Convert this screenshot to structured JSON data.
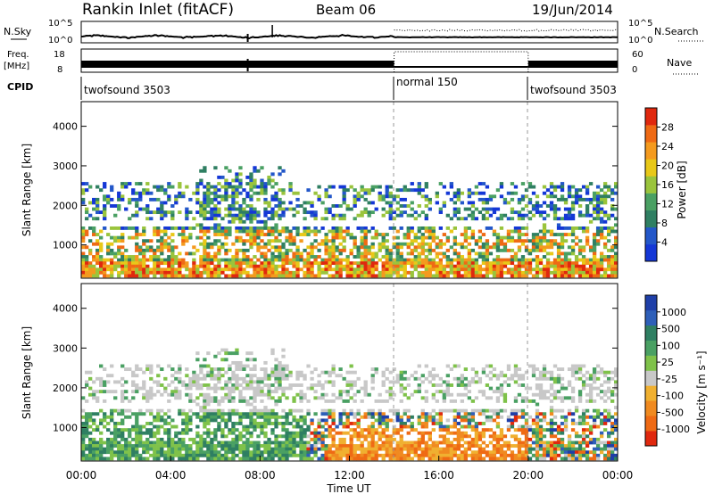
{
  "header": {
    "title": "Rankin Inlet (fitACF)",
    "beam": "Beam 06",
    "date": "19/Jun/2014"
  },
  "chart_data": [
    {
      "type": "line",
      "name": "noise",
      "left_label": "N.Sky",
      "right_label": "N.Search",
      "left_ticks": [
        "10^5",
        "10^0"
      ],
      "right_ticks": [
        "10^5",
        "10^0"
      ]
    },
    {
      "type": "line",
      "name": "frequency-nave",
      "left_label": "Freq.",
      "left_unit": "[MHz]",
      "right_label": "Nave",
      "left_ticks": [
        "18",
        "8"
      ],
      "right_ticks": [
        "60",
        "0"
      ]
    },
    {
      "type": "table",
      "name": "cpid",
      "label": "CPID",
      "segments": [
        {
          "start_hour": 0,
          "end_hour": 14,
          "label": "twofsound 3503"
        },
        {
          "start_hour": 14,
          "end_hour": 20,
          "label": "normal 150"
        },
        {
          "start_hour": 20,
          "end_hour": 24,
          "label": "twofsound 3503"
        }
      ]
    },
    {
      "type": "heatmap",
      "name": "power",
      "ylabel": "Slant Range [km]",
      "y_ticks": [
        1000,
        2000,
        3000,
        4000
      ],
      "ylim": [
        180,
        4600
      ],
      "colorbar_label": "Power [dB]",
      "colorbar_ticks": [
        "4",
        "8",
        "12",
        "16",
        "20",
        "24",
        "28"
      ],
      "colorbar_colors": [
        "#1437d6",
        "#2357c9",
        "#2f7f62",
        "#4aa063",
        "#9ac43c",
        "#e8c818",
        "#f49a1e",
        "#ef6a14",
        "#e0280e"
      ]
    },
    {
      "type": "heatmap",
      "name": "velocity",
      "ylabel": "Slant Range [km]",
      "y_ticks": [
        1000,
        2000,
        3000,
        4000
      ],
      "ylim": [
        180,
        4600
      ],
      "colorbar_label": "Velocity [m s⁻¹]",
      "colorbar_ticks": [
        "1000",
        "500",
        "100",
        "25",
        "-25",
        "-100",
        "-500",
        "-1000"
      ],
      "colorbar_colors": [
        "#1f3fa8",
        "#2e5fb8",
        "#2f7f62",
        "#4aa063",
        "#7fc24a",
        "#c8c8c8",
        "#f0b030",
        "#f08a20",
        "#ef6a14",
        "#e0280e"
      ]
    }
  ],
  "time_axis": {
    "label": "Time UT",
    "ticks": [
      "00:00",
      "04:00",
      "08:00",
      "12:00",
      "16:00",
      "20:00",
      "00:00"
    ]
  }
}
